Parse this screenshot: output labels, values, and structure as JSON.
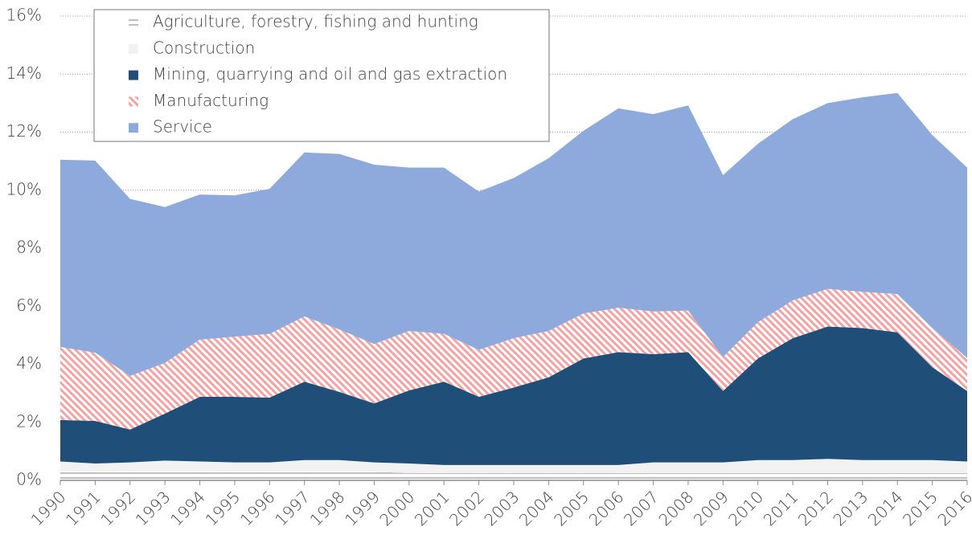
{
  "chart_data": {
    "type": "stacked-area",
    "categories": [
      "1990",
      "1991",
      "1992",
      "1993",
      "1994",
      "1995",
      "1996",
      "1997",
      "1998",
      "1999",
      "2000",
      "2001",
      "2002",
      "2003",
      "2004",
      "2005",
      "2006",
      "2007",
      "2008",
      "2009",
      "2010",
      "2011",
      "2012",
      "2013",
      "2014",
      "2015",
      "2016"
    ],
    "series": [
      {
        "name": "Agriculture, forestry, fishing and hunting",
        "color": "#bfbfbf",
        "pattern": "horizontal",
        "values": [
          0.3,
          0.3,
          0.3,
          0.3,
          0.3,
          0.3,
          0.3,
          0.3,
          0.3,
          0.3,
          0.25,
          0.25,
          0.25,
          0.25,
          0.25,
          0.25,
          0.25,
          0.25,
          0.25,
          0.25,
          0.25,
          0.25,
          0.25,
          0.25,
          0.25,
          0.25,
          0.25
        ]
      },
      {
        "name": "Construction",
        "color": "#f2f2f2",
        "values": [
          0.35,
          0.28,
          0.32,
          0.38,
          0.35,
          0.32,
          0.32,
          0.4,
          0.4,
          0.32,
          0.33,
          0.28,
          0.28,
          0.28,
          0.28,
          0.28,
          0.28,
          0.37,
          0.37,
          0.37,
          0.45,
          0.45,
          0.49,
          0.45,
          0.45,
          0.45,
          0.4
        ]
      },
      {
        "name": "Mining, quarrying and oil and gas extraction",
        "color": "#1f4e79",
        "values": [
          1.43,
          1.47,
          1.13,
          1.62,
          2.23,
          2.26,
          2.23,
          2.7,
          2.35,
          2.03,
          2.52,
          2.87,
          2.35,
          2.67,
          3.02,
          3.67,
          3.89,
          3.73,
          3.8,
          2.46,
          3.5,
          4.2,
          4.56,
          4.55,
          4.4,
          3.2,
          2.43
        ]
      },
      {
        "name": "Manufacturing",
        "color": "#f4a3a3",
        "pattern": "diagonal",
        "values": [
          2.52,
          2.35,
          1.85,
          1.75,
          1.97,
          2.07,
          2.2,
          2.25,
          2.15,
          2.05,
          2.05,
          1.65,
          1.62,
          1.7,
          1.6,
          1.55,
          1.53,
          1.47,
          1.43,
          1.17,
          1.25,
          1.3,
          1.3,
          1.25,
          1.32,
          1.35,
          1.14
        ]
      },
      {
        "name": "Service",
        "color": "#8eaadc",
        "values": [
          6.45,
          6.62,
          6.1,
          5.37,
          5.0,
          4.87,
          5.0,
          5.65,
          6.05,
          6.18,
          5.63,
          5.73,
          5.45,
          5.52,
          5.95,
          6.3,
          6.87,
          6.8,
          7.07,
          6.27,
          6.15,
          6.25,
          6.4,
          6.7,
          6.93,
          6.65,
          6.56
        ]
      }
    ],
    "ylim": [
      0,
      16
    ],
    "yticks": [
      {
        "value": 0,
        "label": "0%"
      },
      {
        "value": 2,
        "label": "2%"
      },
      {
        "value": 4,
        "label": "4%"
      },
      {
        "value": 6,
        "label": "6%"
      },
      {
        "value": 8,
        "label": "8%"
      },
      {
        "value": 10,
        "label": "10%"
      },
      {
        "value": 12,
        "label": "12%"
      },
      {
        "value": 14,
        "label": "14%"
      },
      {
        "value": 16,
        "label": "16%"
      }
    ],
    "grid": true,
    "legend": "top-left"
  }
}
